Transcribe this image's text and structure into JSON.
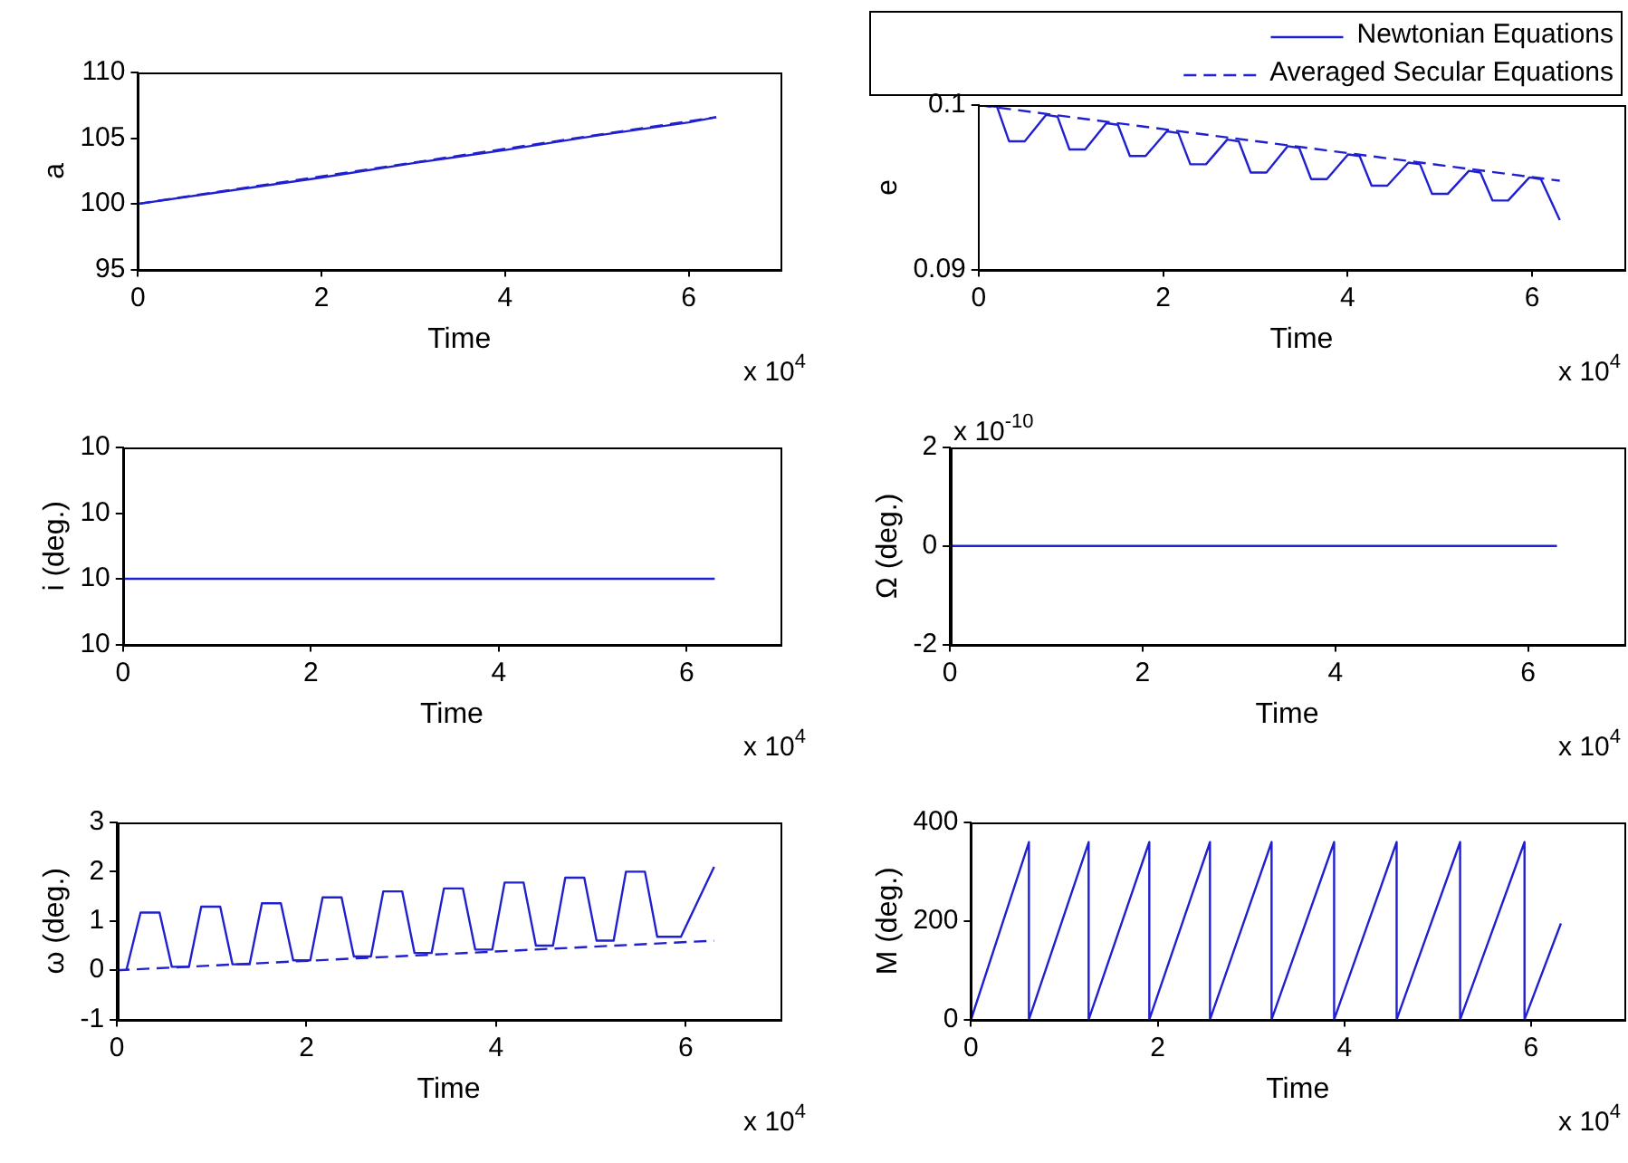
{
  "chart_data": [
    {
      "type": "line",
      "xlabel": "Time",
      "ylabel": "a",
      "xlim": [
        0,
        7
      ],
      "xticks": [
        0,
        2,
        4,
        6
      ],
      "ylim": [
        95,
        110
      ],
      "yticks": [
        95,
        100,
        105,
        110
      ],
      "grid": false,
      "legend": false,
      "marker": "none",
      "annotations": [
        "x 10$^{4}$"
      ],
      "series": [
        {
          "color": "#2020d0",
          "line_style": "solid",
          "x": [
            0,
            1,
            2,
            3,
            4,
            5,
            6,
            6.3
          ],
          "values": [
            100,
            101,
            102,
            103.1,
            104.1,
            105.2,
            106.2,
            106.6
          ]
        },
        {
          "color": "#2020d0",
          "line_style": "dashed",
          "x": [
            0,
            6.3
          ],
          "values": [
            100,
            106.6
          ]
        }
      ]
    },
    {
      "type": "line",
      "xlabel": "Time",
      "ylabel": "e",
      "xlim": [
        0,
        7
      ],
      "xticks": [
        0,
        2,
        4,
        6
      ],
      "ylim": [
        0.09,
        0.1
      ],
      "yticks": [
        0.09,
        0.1
      ],
      "grid": false,
      "legend": "top right",
      "marker": "none",
      "annotations": [
        "x 10$^{4}$"
      ],
      "series": [
        {
          "name": "Newtonian Equations",
          "color": "#2020d0",
          "line_style": "solid",
          "x": [
            0,
            0.2,
            0.33,
            0.5,
            0.73,
            0.855,
            0.985,
            1.155,
            1.385,
            1.51,
            1.64,
            1.81,
            2.04,
            2.165,
            2.295,
            2.465,
            2.695,
            2.82,
            2.95,
            3.12,
            3.35,
            3.475,
            3.605,
            3.775,
            4.005,
            4.13,
            4.26,
            4.43,
            4.66,
            4.785,
            4.915,
            5.085,
            5.315,
            5.44,
            5.57,
            5.74,
            5.97,
            6.095,
            6.3
          ],
          "values": [
            0.1,
            0.0999,
            0.0978,
            0.0978,
            0.0994,
            0.0993,
            0.0973,
            0.0973,
            0.0989,
            0.0988,
            0.0969,
            0.0969,
            0.0984,
            0.0983,
            0.0964,
            0.0964,
            0.0979,
            0.0978,
            0.0959,
            0.0959,
            0.0975,
            0.0974,
            0.0955,
            0.0955,
            0.097,
            0.0969,
            0.0951,
            0.0951,
            0.0965,
            0.0964,
            0.0946,
            0.0946,
            0.096,
            0.0959,
            0.0942,
            0.0942,
            0.0956,
            0.0955,
            0.093
          ]
        },
        {
          "name": "Averaged Secular Equations",
          "color": "#2020d0",
          "line_style": "dashed",
          "x": [
            0,
            6.3
          ],
          "values": [
            0.1,
            0.0954
          ]
        }
      ]
    },
    {
      "type": "line",
      "xlabel": "Time",
      "ylabel": "i (deg.)",
      "xlim": [
        0,
        7
      ],
      "xticks": [
        0,
        2,
        4,
        6
      ],
      "ylim": [
        9.999,
        10.002
      ],
      "yticks": [
        {
          "value": 9.999,
          "label": "10"
        },
        {
          "value": 10,
          "label": "10"
        },
        {
          "value": 10.001,
          "label": "10"
        },
        {
          "value": 10.002,
          "label": "10"
        }
      ],
      "grid": false,
      "legend": false,
      "marker": "none",
      "annotations": [
        "x 10$^{4}$"
      ],
      "series": [
        {
          "color": "#2020d0",
          "line_style": "solid",
          "x": [
            0,
            6.3
          ],
          "values": [
            10,
            10
          ]
        }
      ]
    },
    {
      "type": "line",
      "xlabel": "Time",
      "ylabel": "Ω (deg.)",
      "xlim": [
        0,
        7
      ],
      "xticks": [
        0,
        2,
        4,
        6
      ],
      "ylim": [
        -2,
        2
      ],
      "yticks": [
        -2,
        0,
        2
      ],
      "grid": false,
      "legend": false,
      "marker": "none",
      "annotations": [
        "x 10$^{-10}$",
        "x 10$^{4}$"
      ],
      "series": [
        {
          "color": "#2020d0",
          "line_style": "solid",
          "x": [
            0,
            6.3
          ],
          "values": [
            0,
            0
          ]
        }
      ]
    },
    {
      "type": "line",
      "xlabel": "Time",
      "ylabel": "ω (deg.)",
      "xlim": [
        0,
        7
      ],
      "xticks": [
        0,
        2,
        4,
        6
      ],
      "ylim": [
        -1,
        3
      ],
      "yticks": [
        -1,
        0,
        1,
        2,
        3
      ],
      "grid": false,
      "legend": false,
      "marker": "none",
      "annotations": [
        "x 10$^{4}$"
      ],
      "series": [
        {
          "color": "#2020d0",
          "line_style": "solid",
          "x": [
            0.1,
            0.25,
            0.45,
            0.58,
            0.76,
            0.89,
            1.09,
            1.22,
            1.4,
            1.53,
            1.73,
            1.86,
            2.04,
            2.17,
            2.37,
            2.5,
            2.68,
            2.81,
            3.01,
            3.14,
            3.32,
            3.45,
            3.65,
            3.78,
            3.96,
            4.09,
            4.29,
            4.42,
            4.6,
            4.73,
            4.93,
            5.06,
            5.24,
            5.37,
            5.57,
            5.7,
            5.95,
            6.3
          ],
          "values": [
            0,
            1.17,
            1.17,
            0.07,
            0.07,
            1.29,
            1.29,
            0.12,
            0.12,
            1.36,
            1.36,
            0.2,
            0.2,
            1.48,
            1.48,
            0.28,
            0.28,
            1.6,
            1.6,
            0.35,
            0.35,
            1.66,
            1.66,
            0.42,
            0.42,
            1.78,
            1.78,
            0.5,
            0.5,
            1.88,
            1.88,
            0.6,
            0.6,
            2.0,
            2.0,
            0.68,
            0.68,
            2.1
          ]
        },
        {
          "color": "#2020d0",
          "line_style": "dashed",
          "x": [
            0,
            6.3
          ],
          "values": [
            0,
            0.6
          ]
        }
      ]
    },
    {
      "type": "line",
      "xlabel": "Time",
      "ylabel": "M (deg.)",
      "xlim": [
        0,
        7
      ],
      "xticks": [
        0,
        2,
        4,
        6
      ],
      "ylim": [
        0,
        400
      ],
      "yticks": [
        0,
        200,
        400
      ],
      "grid": false,
      "legend": false,
      "marker": "none",
      "annotations": [
        "x 10$^{4}$"
      ],
      "series": [
        {
          "color": "#2020d0",
          "line_style": "solid",
          "x": [
            0,
            0.62,
            0.62,
            1.26,
            1.26,
            1.91,
            1.91,
            2.56,
            2.56,
            3.22,
            3.22,
            3.89,
            3.89,
            4.56,
            4.56,
            5.24,
            5.24,
            5.93,
            5.93,
            6.32
          ],
          "values": [
            0,
            360,
            0,
            360,
            0,
            360,
            0,
            360,
            0,
            360,
            0,
            360,
            0,
            360,
            0,
            360,
            0,
            360,
            0,
            195
          ]
        }
      ]
    }
  ]
}
